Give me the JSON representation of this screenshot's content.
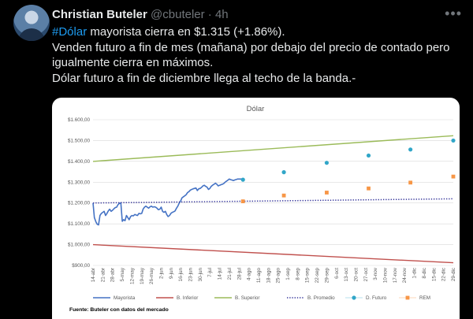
{
  "tweet": {
    "author_name": "Christian Buteler",
    "handle": "@cbuteler",
    "separator": "·",
    "time": "4h",
    "more_icon": "more-horizontal-icon",
    "hashtag": "#Dólar",
    "line1_rest": " mayorista cierra en $1.315 (+1.86%).",
    "line2": "Venden futuro a fin de mes (mañana) por debajo del precio de contado pero",
    "line3": "igualmente cierra en máximos.",
    "line4": "Dólar futuro a fin de diciembre llega al techo de la banda.-",
    "hashtag_color": "#1d9bf0"
  },
  "chart_data": {
    "type": "line",
    "title": "Dólar",
    "source_note": "Fuente: Buteler con datos del mercado",
    "ylim": [
      900,
      1600
    ],
    "y_ticks": [
      "$900,00",
      "$1.000,00",
      "$1.100,00",
      "$1.200,00",
      "$1.300,00",
      "$1.400,00",
      "$1.500,00",
      "$1.600,00"
    ],
    "x_labels": [
      "14-abr",
      "21-abr",
      "28-abr",
      "5-may",
      "12-may",
      "19-may",
      "26-may",
      "2-jun",
      "9-jun",
      "16-jun",
      "23-jun",
      "30-jun",
      "7-jul",
      "14-jul",
      "21-jul",
      "28-jul",
      "4-ago",
      "11-ago",
      "18-ago",
      "25-ago",
      "1-sep",
      "8-sep",
      "15-sep",
      "22-sep",
      "29-sep",
      "6-oct",
      "13-oct",
      "20-oct",
      "27-oct",
      "3-nov",
      "10-nov",
      "17-nov",
      "24-nov",
      "1-dic",
      "8-dic",
      "15-dic",
      "22-dic",
      "29-dic"
    ],
    "grid": true,
    "legend_position": "bottom",
    "series": [
      {
        "name": "Mayorista",
        "color": "#4472c4",
        "style": "solid",
        "x": [
          0,
          0.14,
          0.29,
          0.43,
          0.57,
          0.71,
          0.86,
          1,
          1.14,
          1.29,
          1.43,
          1.57,
          1.71,
          1.86,
          2,
          2.14,
          2.29,
          2.43,
          2.57,
          2.71,
          2.86,
          3,
          3.14,
          3.29,
          3.43,
          3.57,
          3.71,
          3.86,
          4,
          4.14,
          4.29,
          4.43,
          4.57,
          4.71,
          4.86,
          5,
          5.14,
          5.29,
          5.43,
          5.57,
          5.71,
          5.86,
          6,
          6.14,
          6.29,
          6.43,
          6.57,
          6.71,
          6.86,
          7,
          7.14,
          7.29,
          7.43,
          7.57,
          7.71,
          7.86,
          8,
          8.14,
          8.29,
          8.43,
          8.57,
          8.71,
          8.86,
          9,
          9.14,
          9.29,
          9.43,
          9.57,
          9.71,
          9.86,
          10,
          10.14,
          10.29,
          10.43,
          10.57,
          10.71,
          10.86,
          11,
          11.14,
          11.29,
          11.43,
          11.57,
          11.71,
          11.86,
          12,
          12.14,
          12.29,
          12.43,
          12.57,
          12.71,
          12.86,
          13,
          13.14,
          13.29,
          13.43,
          13.57,
          13.71,
          13.86,
          14,
          14.14,
          14.29,
          14.43,
          14.57,
          14.71,
          14.86,
          15,
          15.14,
          15.29
        ],
        "values": [
          1200,
          1130,
          1110,
          1098,
          1095,
          1140,
          1150,
          1155,
          1160,
          1140,
          1150,
          1162,
          1170,
          1160,
          1165,
          1172,
          1178,
          1180,
          1192,
          1198,
          1200,
          1112,
          1120,
          1115,
          1140,
          1130,
          1120,
          1135,
          1140,
          1138,
          1145,
          1142,
          1140,
          1150,
          1148,
          1150,
          1170,
          1180,
          1185,
          1180,
          1175,
          1182,
          1185,
          1180,
          1182,
          1180,
          1175,
          1168,
          1170,
          1180,
          1160,
          1155,
          1160,
          1145,
          1135,
          1140,
          1150,
          1155,
          1158,
          1162,
          1175,
          1185,
          1200,
          1210,
          1225,
          1230,
          1235,
          1240,
          1250,
          1255,
          1262,
          1265,
          1268,
          1270,
          1272,
          1260,
          1268,
          1270,
          1275,
          1282,
          1285,
          1280,
          1276,
          1265,
          1270,
          1280,
          1286,
          1290,
          1295,
          1290,
          1282,
          1285,
          1288,
          1290,
          1294,
          1300,
          1305,
          1310,
          1315,
          1312,
          1310,
          1308,
          1311,
          1313,
          1315,
          1315,
          1315,
          1315
        ]
      },
      {
        "name": "B. Inferior",
        "color": "#c0504d",
        "style": "solid",
        "x": [
          0,
          37
        ],
        "values": [
          1000,
          913
        ]
      },
      {
        "name": "B. Superior",
        "color": "#9bbb59",
        "style": "solid",
        "x": [
          0,
          37
        ],
        "values": [
          1400,
          1523
        ]
      },
      {
        "name": "B. Promedio",
        "color": "#3d3d9e",
        "style": "dotted",
        "x": [
          0,
          37
        ],
        "values": [
          1200,
          1220
        ]
      },
      {
        "name": "D. Futuro",
        "color": "#31a6c8",
        "style": "marker-circle",
        "x": [
          15.4,
          19.6,
          24,
          28.3,
          32.6,
          37
        ],
        "values": [
          1312,
          1348,
          1393,
          1428,
          1457,
          1500
        ]
      },
      {
        "name": "REM",
        "color": "#f79646",
        "style": "marker-square",
        "x": [
          15.4,
          19.6,
          24,
          28.3,
          32.6,
          37
        ],
        "values": [
          1208,
          1236,
          1250,
          1270,
          1298,
          1327
        ]
      }
    ]
  }
}
